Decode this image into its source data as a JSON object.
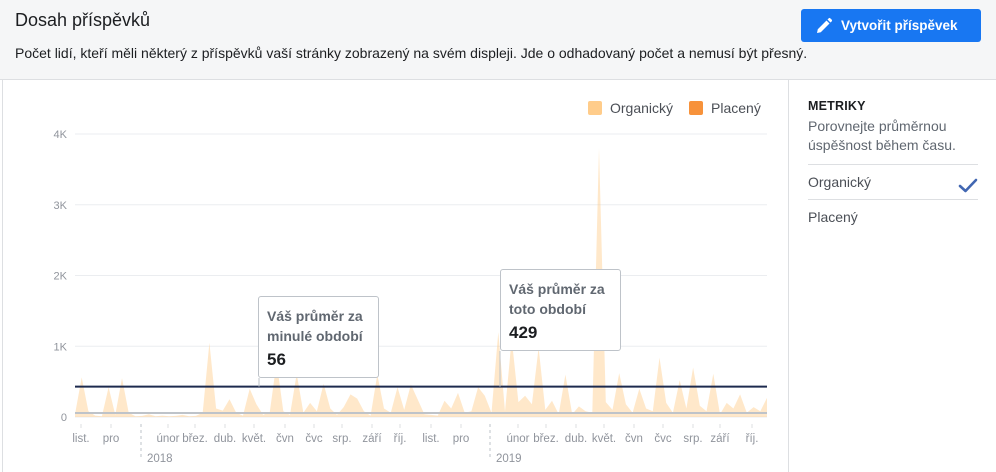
{
  "header": {
    "title": "Dosah příspěvků",
    "subtitle": "Počet lidí, kteří měli některý z příspěvků vaší stránky zobrazený na svém displeji. Jde o odhadovaný počet a nemusí být přesný.",
    "create_button": "Vytvořit příspěvek",
    "create_icon": "pencil-icon"
  },
  "legend": {
    "organic_label": "Organický",
    "paid_label": "Placený"
  },
  "callouts": {
    "previous": {
      "line1": "Váš průměr za",
      "line2": "minulé období",
      "value": "56"
    },
    "current": {
      "line1": "Váš průměr za",
      "line2": "toto období",
      "value": "429"
    }
  },
  "metrics": {
    "heading": "METRIKY",
    "description": "Porovnejte průměrnou úspěšnost během času.",
    "items": [
      {
        "label": "Organický",
        "selected": true
      },
      {
        "label": "Placený",
        "selected": false
      }
    ],
    "check_icon": "checkmark-icon"
  },
  "chart_data": {
    "type": "area",
    "colors": {
      "organic": "#ffcc8a",
      "paid": "#f7923b",
      "average_line": "#1d2a4e",
      "previous_average_line": "#bec3c9"
    },
    "y_ticks": [
      "0",
      "1K",
      "2K",
      "3K",
      "4K"
    ],
    "ylim": [
      0,
      4000
    ],
    "x_ticks": [
      "list.",
      "pro",
      "únor",
      "břez.",
      "dub.",
      "květ.",
      "čvn",
      "čvc",
      "srp.",
      "září",
      "říj.",
      "list.",
      "pro",
      "únor",
      "břez.",
      "dub.",
      "květ.",
      "čvn",
      "čvc",
      "srp.",
      "září",
      "říj."
    ],
    "year_labels": [
      "2018",
      "2019"
    ],
    "average_current": 429,
    "average_previous": 56,
    "series": [
      {
        "name": "Organický",
        "values": [
          40,
          560,
          80,
          20,
          10,
          420,
          30,
          550,
          60,
          10,
          15,
          40,
          10,
          20,
          10,
          15,
          30,
          10,
          15,
          60,
          1050,
          120,
          90,
          250,
          60,
          20,
          400,
          180,
          30,
          70,
          780,
          80,
          30,
          610,
          60,
          200,
          80,
          470,
          120,
          30,
          140,
          320,
          260,
          80,
          20,
          600,
          120,
          60,
          420,
          100,
          460,
          250,
          40,
          30,
          20,
          230,
          120,
          340,
          60,
          80,
          420,
          300,
          60,
          1200,
          80,
          1110,
          210,
          300,
          180,
          980,
          100,
          230,
          40,
          600,
          40,
          150,
          80,
          60,
          3800,
          210,
          100,
          620,
          180,
          60,
          400,
          120,
          80,
          840,
          200,
          60,
          520,
          120,
          700,
          160,
          80,
          610,
          40,
          200,
          120,
          320,
          60,
          140,
          80,
          270
        ]
      },
      {
        "name": "Placený",
        "values": [
          0,
          0,
          0,
          0,
          0,
          0,
          0,
          0,
          0,
          0,
          0,
          0,
          0,
          0,
          0,
          0,
          0,
          0,
          0,
          0,
          0,
          0,
          0,
          0,
          0,
          0,
          0,
          0,
          0,
          0,
          0,
          0,
          0,
          0,
          0,
          0,
          0,
          0,
          0,
          0,
          0,
          0,
          0,
          0,
          0,
          0,
          0,
          0,
          0,
          0,
          0,
          0,
          0,
          0,
          0,
          0,
          0,
          0,
          0,
          0,
          0,
          0,
          0,
          0,
          0,
          0,
          0,
          0,
          0,
          0,
          0,
          0,
          0,
          0,
          0,
          0,
          0,
          0,
          0,
          0,
          0,
          0,
          0,
          0,
          0,
          0,
          0,
          0,
          0,
          0,
          0,
          0,
          0,
          0,
          0,
          0,
          0,
          0,
          0,
          0,
          0,
          0,
          0,
          0
        ]
      }
    ]
  }
}
